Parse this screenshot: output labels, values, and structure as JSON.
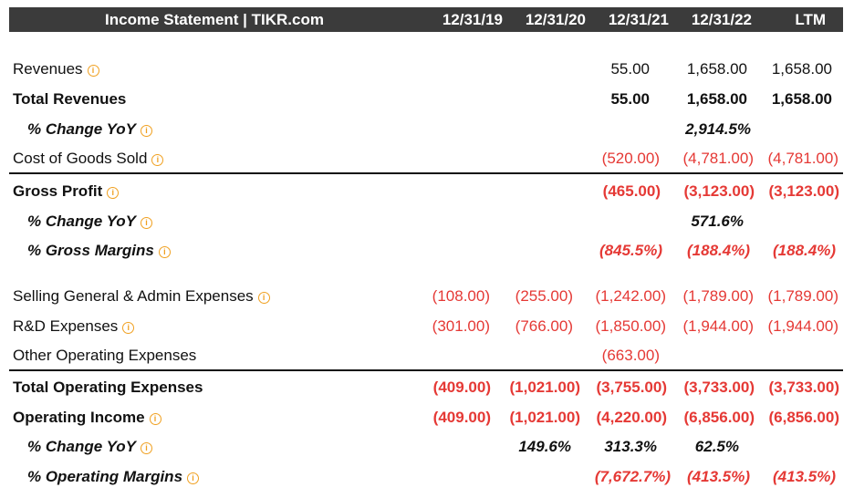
{
  "header": {
    "title": "Income Statement | TIKR.com",
    "periods": [
      "12/31/19",
      "12/31/20",
      "12/31/21",
      "12/31/22",
      "LTM"
    ]
  },
  "rows": [
    {
      "label": "Revenues",
      "values": [
        "",
        "",
        "55.00",
        "1,658.00",
        "1,658.00"
      ]
    },
    {
      "label": "Total Revenues",
      "values": [
        "",
        "",
        "55.00",
        "1,658.00",
        "1,658.00"
      ]
    },
    {
      "label": "% Change YoY",
      "values": [
        "",
        "",
        "",
        "2,914.5%",
        ""
      ]
    },
    {
      "label": "Cost of Goods Sold",
      "values": [
        "",
        "",
        "(520.00)",
        "(4,781.00)",
        "(4,781.00)"
      ]
    },
    {
      "label": "Gross Profit",
      "values": [
        "",
        "",
        "(465.00)",
        "(3,123.00)",
        "(3,123.00)"
      ]
    },
    {
      "label": "% Change YoY",
      "values": [
        "",
        "",
        "",
        "571.6%",
        ""
      ]
    },
    {
      "label": "% Gross Margins",
      "values": [
        "",
        "",
        "(845.5%)",
        "(188.4%)",
        "(188.4%)"
      ]
    },
    {
      "label": "Selling General & Admin Expenses",
      "values": [
        "(108.00)",
        "(255.00)",
        "(1,242.00)",
        "(1,789.00)",
        "(1,789.00)"
      ]
    },
    {
      "label": "R&D Expenses",
      "values": [
        "(301.00)",
        "(766.00)",
        "(1,850.00)",
        "(1,944.00)",
        "(1,944.00)"
      ]
    },
    {
      "label": "Other Operating Expenses",
      "values": [
        "",
        "",
        "(663.00)",
        "",
        ""
      ]
    },
    {
      "label": "Total Operating Expenses",
      "values": [
        "(409.00)",
        "(1,021.00)",
        "(3,755.00)",
        "(3,733.00)",
        "(3,733.00)"
      ]
    },
    {
      "label": "Operating Income",
      "values": [
        "(409.00)",
        "(1,021.00)",
        "(4,220.00)",
        "(6,856.00)",
        "(6,856.00)"
      ]
    },
    {
      "label": "% Change YoY",
      "values": [
        "",
        "149.6%",
        "313.3%",
        "62.5%",
        ""
      ]
    },
    {
      "label": "% Operating Margins",
      "values": [
        "",
        "",
        "(7,672.7%)",
        "(413.5%)",
        "(413.5%)"
      ]
    }
  ],
  "colors": {
    "header_bg": "#3b3b3b",
    "negative": "#e53935",
    "info_icon": "#f0a020"
  }
}
